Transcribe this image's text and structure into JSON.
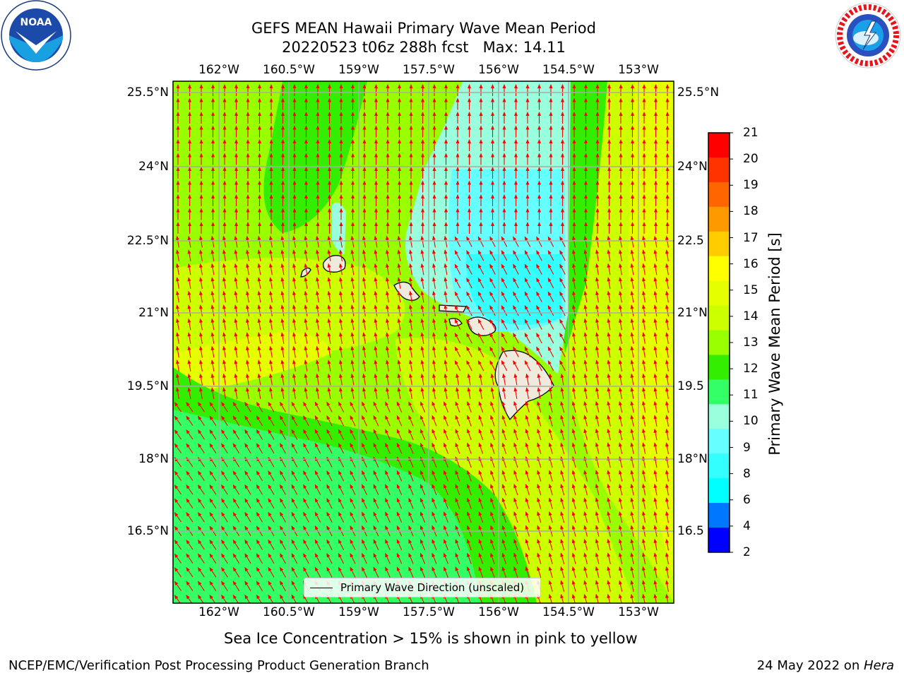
{
  "header": {
    "title": "GEFS MEAN Hawaii Primary Wave Mean Period",
    "subtitle": "20220523 t06z 288h fcst   Max: 14.11"
  },
  "logos": {
    "left": "NOAA",
    "right": "NATIONAL WEATHER SERVICE"
  },
  "map": {
    "lon_ticks": [
      "162°W",
      "160.5°W",
      "159°W",
      "157.5°W",
      "156°W",
      "154.5°W",
      "153°W"
    ],
    "lat_ticks_left": [
      "25.5°N",
      "24°N",
      "22.5°N",
      "21°N",
      "19.5°N",
      "18°N",
      "16.5°N"
    ],
    "lat_ticks_right": [
      "25.5°N",
      "24°N",
      "22.5",
      "21°N",
      "19.5",
      "18°N",
      "16.5"
    ],
    "legend_label": "Primary Wave Direction (unscaled)",
    "arrow_color": "#ff0000",
    "land_color": "#eeeadc",
    "grid_color": "#aaaaaa"
  },
  "colorbar": {
    "label": "Primary Wave Mean Period [s]",
    "ticks": [
      "21",
      "20",
      "19",
      "18",
      "17",
      "16",
      "15",
      "14",
      "13",
      "12",
      "11",
      "10",
      "9",
      "8",
      "6",
      "4",
      "2"
    ],
    "colors": [
      "#ff0000",
      "#ff3300",
      "#ff6600",
      "#ff9900",
      "#ffcc00",
      "#ffff00",
      "#e5ff00",
      "#ccff00",
      "#99ff00",
      "#33ee00",
      "#33ff66",
      "#99ffdd",
      "#66ffff",
      "#33ffff",
      "#00ffff",
      "#0077ff",
      "#0000ff"
    ]
  },
  "footer": {
    "note": "Sea Ice Concentration > 15% is shown in pink to yellow",
    "left": "NCEP/EMC/Verification Post Processing Product Generation Branch",
    "right_prefix": "24 May 2022 on ",
    "right_machine": "Hera"
  }
}
